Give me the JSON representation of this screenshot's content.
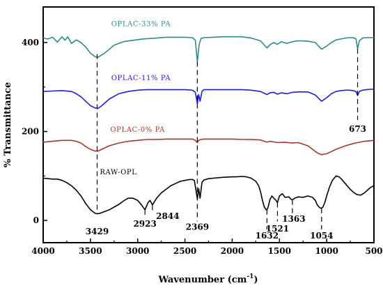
{
  "chart_data": {
    "type": "line",
    "title": "",
    "xlabel": "Wavenumber (cm",
    "xlabel_sup": "-1",
    "xlabel_close": ")",
    "ylabel": "% Transmittance",
    "xlim": [
      4000,
      500
    ],
    "ylim": [
      -50,
      480
    ],
    "x_reversed": true,
    "grid": false,
    "legend": "none",
    "xticks": [
      4000,
      3500,
      3000,
      2500,
      2000,
      1500,
      1000,
      500
    ],
    "yticks": [
      0,
      200,
      400
    ],
    "series": [
      {
        "name": "OPLAC-33% PA",
        "color": "#2e8b8b",
        "x": [
          4000,
          3950,
          3900,
          3850,
          3800,
          3770,
          3740,
          3700,
          3650,
          3600,
          3550,
          3500,
          3450,
          3420,
          3350,
          3250,
          3150,
          3050,
          2950,
          2880,
          2800,
          2700,
          2600,
          2500,
          2420,
          2390,
          2369,
          2350,
          2330,
          2300,
          2200,
          2100,
          2000,
          1900,
          1800,
          1700,
          1650,
          1632,
          1600,
          1560,
          1521,
          1480,
          1420,
          1363,
          1300,
          1200,
          1120,
          1054,
          1000,
          950,
          900,
          850,
          800,
          760,
          720,
          690,
          673,
          655,
          620,
          580,
          540,
          500
        ],
        "y": [
          410,
          408,
          412,
          401,
          413,
          405,
          413,
          398,
          406,
          400,
          390,
          376,
          368,
          367,
          376,
          394,
          402,
          405,
          408,
          409,
          410,
          412,
          412,
          412,
          411,
          405,
          357,
          395,
          409,
          411,
          412,
          413,
          413,
          413,
          410,
          404,
          392,
          388,
          395,
          400,
          396,
          402,
          398,
          402,
          404,
          403,
          400,
          385,
          392,
          400,
          406,
          408,
          410,
          411,
          411,
          408,
          386,
          404,
          410,
          411,
          411,
          411
        ]
      },
      {
        "name": "OPLAC-11% PA",
        "color": "#1f1fcf",
        "x": [
          4000,
          3900,
          3800,
          3700,
          3650,
          3600,
          3550,
          3500,
          3450,
          3420,
          3380,
          3300,
          3200,
          3100,
          3000,
          2900,
          2800,
          2700,
          2600,
          2500,
          2420,
          2390,
          2369,
          2355,
          2340,
          2320,
          2300,
          2200,
          2100,
          2000,
          1900,
          1800,
          1700,
          1632,
          1600,
          1560,
          1521,
          1480,
          1420,
          1363,
          1300,
          1200,
          1120,
          1054,
          1000,
          950,
          900,
          850,
          800,
          760,
          720,
          690,
          673,
          655,
          620,
          580,
          540,
          500
        ],
        "y": [
          290,
          291,
          292,
          290,
          285,
          278,
          268,
          258,
          253,
          252,
          258,
          273,
          285,
          290,
          293,
          294,
          294,
          294,
          294,
          294,
          293,
          288,
          262,
          283,
          268,
          290,
          294,
          294,
          294,
          294,
          294,
          293,
          290,
          283,
          287,
          288,
          284,
          287,
          285,
          288,
          289,
          289,
          282,
          268,
          276,
          285,
          290,
          292,
          293,
          293,
          292,
          290,
          281,
          290,
          293,
          294,
          295,
          295
        ]
      },
      {
        "name": "OPLAC-0% PA",
        "color": "#a0392a",
        "x": [
          4000,
          3900,
          3800,
          3700,
          3650,
          3600,
          3550,
          3500,
          3450,
          3420,
          3380,
          3300,
          3200,
          3100,
          3000,
          2900,
          2800,
          2700,
          2600,
          2500,
          2420,
          2390,
          2369,
          2355,
          2330,
          2300,
          2200,
          2100,
          2000,
          1900,
          1800,
          1700,
          1632,
          1600,
          1521,
          1450,
          1363,
          1300,
          1200,
          1150,
          1100,
          1054,
          1000,
          950,
          900,
          800,
          700,
          600,
          500
        ],
        "y": [
          176,
          178,
          180,
          180,
          178,
          174,
          166,
          160,
          156,
          156,
          160,
          168,
          174,
          178,
          180,
          182,
          182,
          183,
          183,
          183,
          183,
          180,
          175,
          180,
          182,
          183,
          183,
          183,
          183,
          182,
          182,
          181,
          176,
          178,
          175,
          176,
          174,
          175,
          168,
          160,
          152,
          148,
          150,
          155,
          160,
          168,
          174,
          178,
          180
        ]
      },
      {
        "name": "RAW-OPL",
        "color": "#000000",
        "x": [
          4000,
          3900,
          3850,
          3800,
          3750,
          3700,
          3650,
          3600,
          3550,
          3500,
          3450,
          3429,
          3400,
          3350,
          3300,
          3250,
          3200,
          3150,
          3100,
          3050,
          3000,
          2960,
          2923,
          2890,
          2870,
          2844,
          2800,
          2750,
          2700,
          2650,
          2600,
          2550,
          2500,
          2450,
          2420,
          2400,
          2385,
          2369,
          2355,
          2340,
          2320,
          2300,
          2250,
          2200,
          2100,
          2000,
          1950,
          1900,
          1850,
          1800,
          1750,
          1720,
          1700,
          1680,
          1660,
          1640,
          1632,
          1620,
          1600,
          1580,
          1560,
          1540,
          1521,
          1500,
          1470,
          1440,
          1400,
          1380,
          1363,
          1340,
          1300,
          1250,
          1200,
          1150,
          1120,
          1100,
          1080,
          1060,
          1054,
          1040,
          1020,
          1000,
          970,
          940,
          900,
          870,
          840,
          800,
          760,
          720,
          680,
          640,
          600,
          560,
          530,
          500
        ],
        "y": [
          95,
          93,
          93,
          90,
          85,
          78,
          68,
          55,
          38,
          24,
          16,
          15,
          16,
          20,
          24,
          30,
          36,
          44,
          50,
          50,
          45,
          35,
          24,
          40,
          45,
          35,
          50,
          62,
          70,
          78,
          83,
          88,
          90,
          92,
          92,
          90,
          70,
          48,
          72,
          50,
          85,
          91,
          94,
          95,
          97,
          98,
          98,
          99,
          98,
          95,
          88,
          78,
          65,
          45,
          30,
          24,
          24,
          30,
          47,
          55,
          50,
          46,
          40,
          55,
          60,
          52,
          53,
          48,
          46,
          50,
          53,
          52,
          55,
          52,
          45,
          35,
          30,
          27,
          28,
          30,
          40,
          55,
          75,
          90,
          100,
          98,
          92,
          82,
          72,
          64,
          58,
          57,
          62,
          70,
          75,
          78
        ]
      }
    ],
    "series_labels": [
      {
        "text": "OPLAC-33% PA",
        "color": "#2e8b8b",
        "x": 3280,
        "y": 437
      },
      {
        "text": "OPLAC-11% PA",
        "color": "#1f1fcf",
        "x": 3280,
        "y": 315
      },
      {
        "text": "OPLAC-0% PA",
        "color": "#a0392a",
        "x": 3290,
        "y": 199
      },
      {
        "text": "RAW-OPL",
        "color": "#000000",
        "x": 3400,
        "y": 104
      }
    ],
    "peak_markers": [
      {
        "label": "3429",
        "x": 3429,
        "y_top": 374,
        "y_bottom": 14,
        "label_y": -23,
        "dx": 0
      },
      {
        "label": "2923",
        "x": 2923,
        "y_top": 24,
        "y_bottom": 8,
        "label_y": -6,
        "dx": 0
      },
      {
        "label": "2844",
        "x": 2844,
        "y_top": 34,
        "y_bottom": 20,
        "label_y": 11,
        "dx": 22
      },
      {
        "label": "2369",
        "x": 2369,
        "y_top": 357,
        "y_bottom": -2,
        "label_y": -13,
        "dx": 0
      },
      {
        "label": "1632",
        "x": 1632,
        "y_top": 24,
        "y_bottom": -20,
        "label_y": -33,
        "dx": 0
      },
      {
        "label": "1521",
        "x": 1521,
        "y_top": 40,
        "y_bottom": -2,
        "label_y": -17,
        "dx": 0
      },
      {
        "label": "1363",
        "x": 1363,
        "y_top": 46,
        "y_bottom": 12,
        "label_y": 5,
        "dx": 2
      },
      {
        "label": "1054",
        "x": 1054,
        "y_top": 27,
        "y_bottom": -20,
        "label_y": -33,
        "dx": 0
      },
      {
        "label": "673",
        "x": 673,
        "y_top": 386,
        "y_bottom": 226,
        "label_y": 207,
        "dx": 0
      }
    ]
  }
}
